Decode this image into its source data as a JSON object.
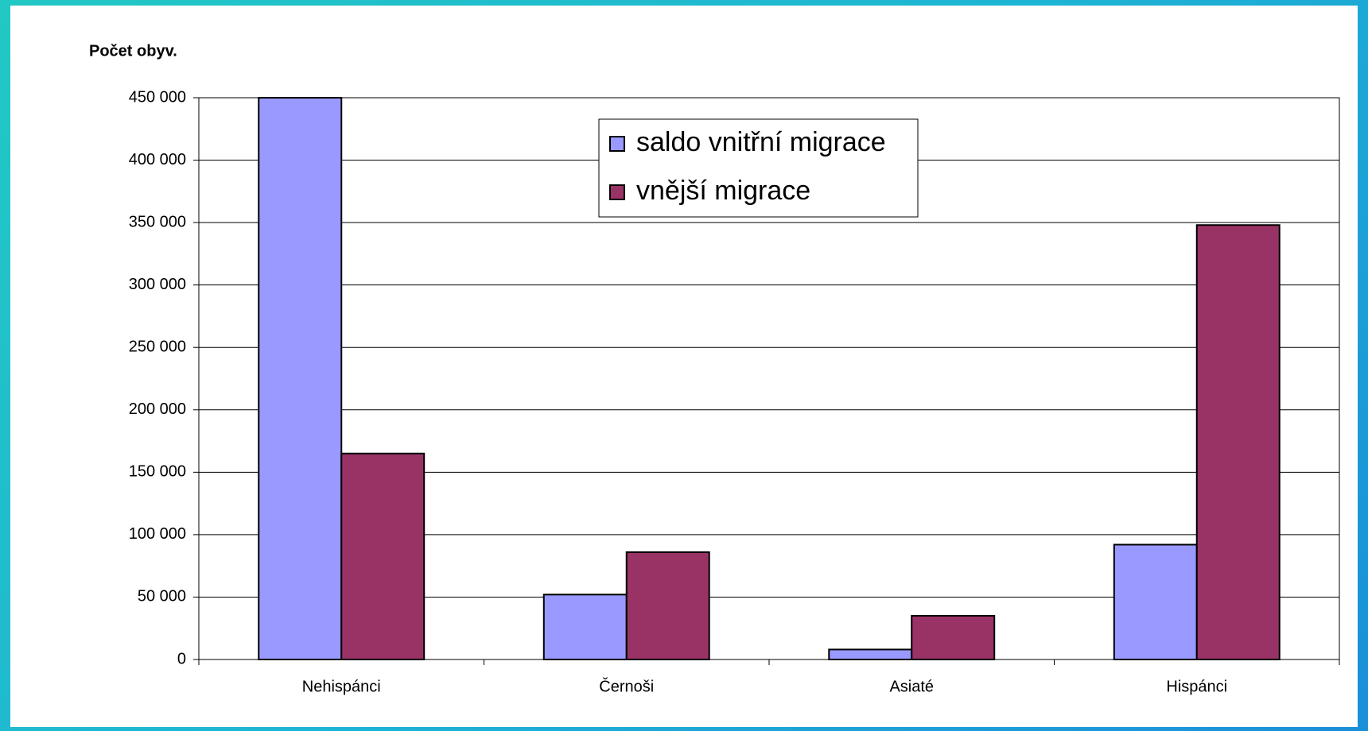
{
  "chart_data": {
    "type": "bar",
    "ylabel": "Počet obyv.",
    "categories": [
      "Nehispánci",
      "Černoši",
      "Asiaté",
      "Hispánci"
    ],
    "series": [
      {
        "name": "saldo vnitřní migrace",
        "color": "#9999ff",
        "values": [
          450000,
          52000,
          8000,
          92000
        ]
      },
      {
        "name": "vnější migrace",
        "color": "#993366",
        "values": [
          165000,
          86000,
          35000,
          348000
        ]
      }
    ],
    "ylim": [
      0,
      450000
    ],
    "yticks": [
      0,
      {
        "value": 50000,
        "label": "50 000"
      },
      {
        "value": 100000,
        "label": "100 000"
      },
      {
        "value": 150000,
        "label": "150 000"
      },
      {
        "value": 200000,
        "label": "200 000"
      },
      {
        "value": 250000,
        "label": "250 000"
      },
      {
        "value": 300000,
        "label": "300 000"
      },
      {
        "value": 350000,
        "label": "350 000"
      },
      {
        "value": 400000,
        "label": "400 000"
      },
      {
        "value": 450000,
        "label": "450 000"
      }
    ],
    "grid": true
  }
}
